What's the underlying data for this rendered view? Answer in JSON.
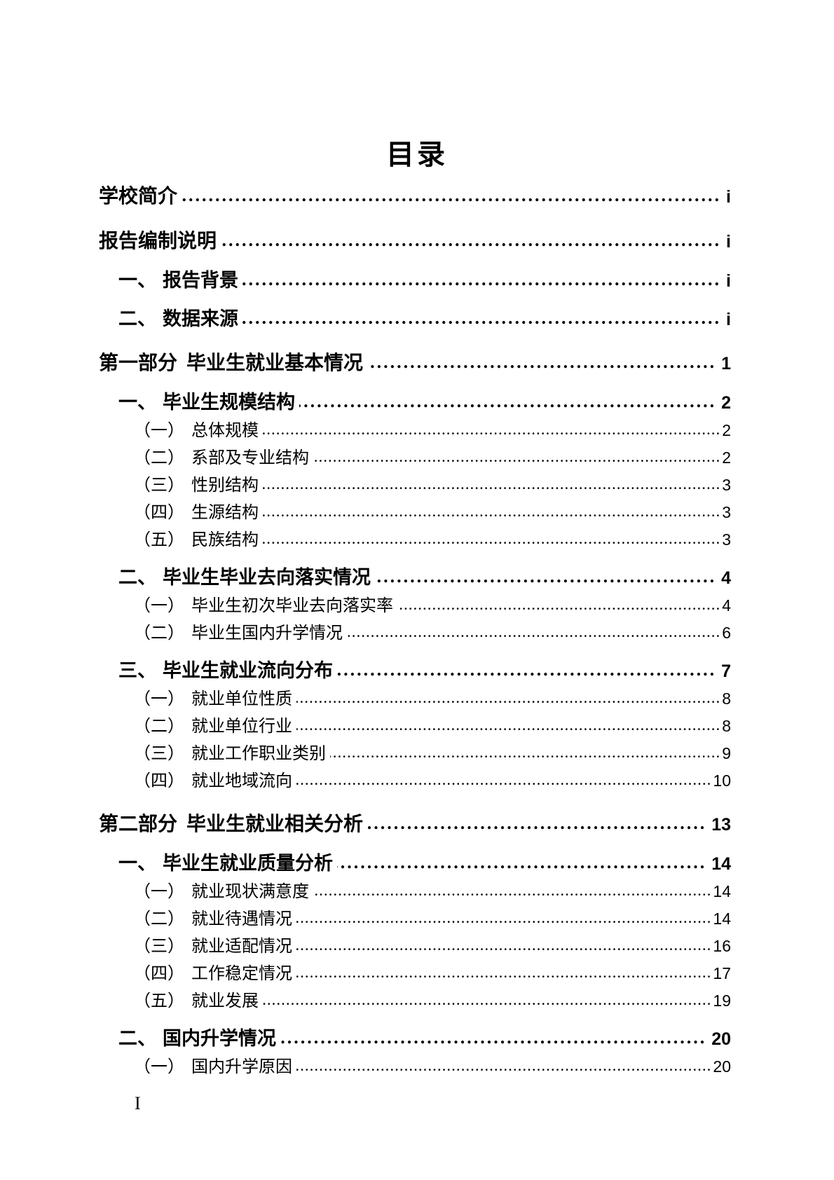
{
  "document": {
    "title": "目录",
    "footer_page_label": "I"
  },
  "toc": {
    "entries": [
      {
        "level": 1,
        "num": "",
        "text": "学校简介",
        "page": "i"
      },
      {
        "level": 1,
        "num": "",
        "text": "报告编制说明",
        "page": "i"
      },
      {
        "level": 2,
        "num": "一、",
        "text": "报告背景",
        "page": "i"
      },
      {
        "level": 2,
        "num": "二、",
        "text": "数据来源",
        "page": "i"
      },
      {
        "level": 1,
        "num": "第一部分",
        "text": "毕业生就业基本情况",
        "page": "1"
      },
      {
        "level": 2,
        "num": "一、",
        "text": "毕业生规模结构",
        "page": "2"
      },
      {
        "level": 3,
        "num": "（一）",
        "text": "总体规模",
        "page": "2"
      },
      {
        "level": 3,
        "num": "（二）",
        "text": "系部及专业结构",
        "page": "2"
      },
      {
        "level": 3,
        "num": "（三）",
        "text": "性别结构",
        "page": "3"
      },
      {
        "level": 3,
        "num": "（四）",
        "text": "生源结构",
        "page": "3"
      },
      {
        "level": 3,
        "num": "（五）",
        "text": "民族结构",
        "page": "3"
      },
      {
        "level": 2,
        "num": "二、",
        "text": "毕业生毕业去向落实情况",
        "page": "4"
      },
      {
        "level": 3,
        "num": "（一）",
        "text": "毕业生初次毕业去向落实率",
        "page": "4"
      },
      {
        "level": 3,
        "num": "（二）",
        "text": "毕业生国内升学情况",
        "page": "6"
      },
      {
        "level": 2,
        "num": "三、",
        "text": "毕业生就业流向分布",
        "page": "7"
      },
      {
        "level": 3,
        "num": "（一）",
        "text": "就业单位性质",
        "page": "8"
      },
      {
        "level": 3,
        "num": "（二）",
        "text": "就业单位行业",
        "page": "8"
      },
      {
        "level": 3,
        "num": "（三）",
        "text": "就业工作职业类别",
        "page": "9"
      },
      {
        "level": 3,
        "num": "（四）",
        "text": "就业地域流向",
        "page": "10"
      },
      {
        "level": 1,
        "num": "第二部分",
        "text": "毕业生就业相关分析",
        "page": "13"
      },
      {
        "level": 2,
        "num": "一、",
        "text": "毕业生就业质量分析",
        "page": "14"
      },
      {
        "level": 3,
        "num": "（一）",
        "text": "就业现状满意度",
        "page": "14"
      },
      {
        "level": 3,
        "num": "（二）",
        "text": "就业待遇情况",
        "page": "14"
      },
      {
        "level": 3,
        "num": "（三）",
        "text": "就业适配情况",
        "page": "16"
      },
      {
        "level": 3,
        "num": "（四）",
        "text": "工作稳定情况",
        "page": "17"
      },
      {
        "level": 3,
        "num": "（五）",
        "text": "就业发展",
        "page": "19"
      },
      {
        "level": 2,
        "num": "二、",
        "text": "国内升学情况",
        "page": "20"
      },
      {
        "level": 3,
        "num": "（一）",
        "text": "国内升学原因",
        "page": "20"
      }
    ]
  }
}
